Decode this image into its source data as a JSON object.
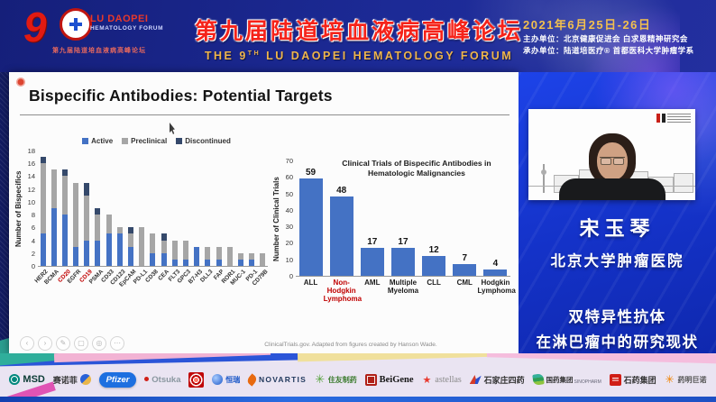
{
  "header": {
    "logo": {
      "nine": "9",
      "en_line1": "LU DAOPEI",
      "en_line2": "HEMATOLOGY  FORUM",
      "cn_small": "第九届陆道培血液病高峰论坛"
    },
    "title_cn": "第九届陆道培血液病高峰论坛",
    "title_en_pre": "THE 9",
    "title_en_sup": "TH",
    "title_en_post": " LU DAOPEI HEMATOLOGY FORUM",
    "date": "2021年6月25日-26日",
    "host_line": "主办单位：北京健康促进会  白求恩精神研究会",
    "organizer_line": "承办单位：陆道培医疗®      首都医科大学肿瘤学系"
  },
  "slide": {
    "title": "Bispecific Antibodies: Potential Targets",
    "footnote": "ClinicalTrials.gov. Adapted from figures created by Hanson Wade.",
    "toolbar_icons": [
      {
        "name": "prev-slide-icon",
        "glyph": "‹"
      },
      {
        "name": "next-slide-icon",
        "glyph": "›"
      },
      {
        "name": "pen-icon",
        "glyph": "✎"
      },
      {
        "name": "all-slides-icon",
        "glyph": "▢"
      },
      {
        "name": "zoom-icon",
        "glyph": "◎"
      },
      {
        "name": "more-options-icon",
        "glyph": "⋯"
      }
    ]
  },
  "chart_data": [
    {
      "type": "bar",
      "stacked": true,
      "title": "",
      "xlabel": "",
      "ylabel": "Number of Bispecifics",
      "ylim": [
        0,
        18
      ],
      "ytick_step": 2,
      "grid": false,
      "legend_position": "top",
      "highlight_color": "#c00000",
      "categories": [
        "HER2",
        "BCMA",
        "CD20",
        "EGFR",
        "CD19",
        "PSMA",
        "CD33",
        "CD123",
        "EpCAM",
        "PD-L1",
        "CD38",
        "CEA",
        "FLT3",
        "GPC3",
        "B7-H3",
        "DLL3",
        "FAP",
        "ROR1",
        "MUC-1",
        "PD-1",
        "CD79B"
      ],
      "highlighted_categories": [
        "CD20",
        "CD19"
      ],
      "series": [
        {
          "name": "Active",
          "color": "#4472c4",
          "values": [
            5,
            9,
            8,
            3,
            4,
            4,
            5,
            5,
            3,
            0,
            2,
            2,
            1,
            1,
            3,
            1,
            1,
            0,
            1,
            1,
            0
          ]
        },
        {
          "name": "Preclinical",
          "color": "#a6a6a6",
          "values": [
            11,
            6,
            6,
            10,
            7,
            4,
            3,
            1,
            2,
            6,
            3,
            2,
            3,
            3,
            0,
            2,
            2,
            3,
            1,
            1,
            2
          ]
        },
        {
          "name": "Discontinued",
          "color": "#35496b",
          "values": [
            1,
            0,
            1,
            0,
            2,
            1,
            0,
            0,
            1,
            0,
            0,
            1,
            0,
            0,
            0,
            0,
            0,
            0,
            0,
            0,
            0
          ]
        }
      ]
    },
    {
      "type": "bar",
      "stacked": false,
      "title": "Clinical Trials of Bispecific Antibodies in Hematologic Malignancies",
      "xlabel": "",
      "ylabel": "Number of Clinical Trials",
      "ylim": [
        0,
        70
      ],
      "ytick_step": 10,
      "grid": false,
      "bar_color": "#4472c4",
      "value_labels": true,
      "highlight_color": "#c00000",
      "categories": [
        "ALL",
        "Non-Hodgkin Lymphoma",
        "AML",
        "Multiple Myeloma",
        "CLL",
        "CML",
        "Hodgkin Lymphoma"
      ],
      "highlighted_categories": [
        "Non-Hodgkin Lymphoma"
      ],
      "values": [
        59,
        48,
        17,
        17,
        12,
        7,
        4
      ]
    }
  ],
  "speaker": {
    "name": "宋玉琴",
    "hospital": "北京大学肿瘤医院",
    "topic_line1": "双特异性抗体",
    "topic_line2": "在淋巴瘤中的研究现状"
  },
  "sponsors": [
    {
      "label": "MSD",
      "icon": "msd-icon"
    },
    {
      "label": "赛诺菲",
      "icon": "sanofi-swoosh-icon"
    },
    {
      "label": "Pfizer",
      "icon": "pfizer-oval-icon"
    },
    {
      "label": "Otsuka",
      "icon": "otsuka-dot-icon"
    },
    {
      "label": "",
      "icon": "red-emblem-icon"
    },
    {
      "label": "恒瑞",
      "icon": "hengrui-swirl-icon"
    },
    {
      "label": "NOVARTIS",
      "icon": "novartis-flame-icon"
    },
    {
      "label": "住友制药",
      "icon": "sumitomo-asterisk-icon",
      "glyph": "✳"
    },
    {
      "label": "BeiGene",
      "icon": "beigene-seal-icon"
    },
    {
      "label": "astellas",
      "icon": "astellas-star-icon",
      "glyph": "★"
    },
    {
      "label": "石家庄四药",
      "icon": "sjz-siyao-bird-icon"
    },
    {
      "label": "国药集团",
      "sublabel": "SINOPHARM",
      "icon": "sinopharm-leaf-icon"
    },
    {
      "label": "石药集团",
      "icon": "cspc-square-icon"
    },
    {
      "label": "药明巨诺",
      "icon": "jw-flower-icon",
      "glyph": "✳"
    }
  ],
  "colors": {
    "header_bg": "#1c2a96",
    "panel_blue": "#1636d6",
    "title_red": "#f5231a",
    "gold": "#eeb54c",
    "chart_active": "#4472c4",
    "chart_preclinical": "#a6a6a6",
    "chart_discontinued": "#35496b",
    "highlight_red": "#c00000"
  }
}
